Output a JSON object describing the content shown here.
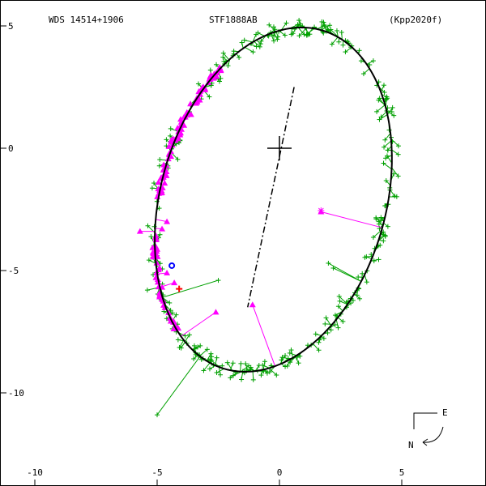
{
  "header": {
    "left": "WDS 14514+1906",
    "center": "STF1888AB",
    "right": "(Kpp2020f)"
  },
  "compass": {
    "east": "E",
    "north": "N"
  },
  "colors": {
    "frame": "#000000",
    "orbit": "#000000",
    "observations": "#00a000",
    "speckle": "#ff00ff",
    "blue_marks": "#0000ff",
    "red_marks": "#ff0000"
  },
  "chart_data": {
    "type": "scatter",
    "title": "STF1888AB",
    "xlim": [
      -11,
      8.5
    ],
    "ylim": [
      -13.5,
      5.5
    ],
    "x_ticks": [
      {
        "v": -10,
        "label": "-10"
      },
      {
        "v": -5,
        "label": "-5"
      },
      {
        "v": 0,
        "label": "0"
      },
      {
        "v": 5,
        "label": "5"
      }
    ],
    "y_ticks": [
      {
        "v": 5,
        "label": "5"
      },
      {
        "v": 0,
        "label": "0"
      },
      {
        "v": -5,
        "label": "-5"
      },
      {
        "v": -10,
        "label": "-10"
      }
    ],
    "y_tick_labels_shown_without_sign": [
      "5"
    ],
    "orbit": {
      "semi_major": 7.2,
      "semi_minor": 4.6,
      "center": [
        -0.25,
        -2.1
      ],
      "tilt_deg": 16
    },
    "primary": [
      0,
      0
    ],
    "line_of_nodes": [
      [
        0.6,
        2.5
      ],
      [
        -1.3,
        -6.5
      ]
    ],
    "outliers": [
      {
        "x": -5.0,
        "y": -10.9
      },
      {
        "x": -2.8,
        "y": -8.4
      },
      {
        "x": -5.4,
        "y": -5.8
      },
      {
        "x": -2.5,
        "y": -5.4
      },
      {
        "x": 2.0,
        "y": -4.7
      },
      {
        "x": 2.2,
        "y": -4.9
      }
    ],
    "speckle_cluster": [
      {
        "x": -5.7,
        "y": -3.4
      },
      {
        "x": -4.8,
        "y": -3.3
      },
      {
        "x": -4.6,
        "y": -3.0
      },
      {
        "x": -4.9,
        "y": -4.9
      },
      {
        "x": -4.6,
        "y": -5.1
      },
      {
        "x": -4.3,
        "y": -5.5
      },
      {
        "x": -2.6,
        "y": -6.7
      },
      {
        "x": -1.1,
        "y": -6.4
      },
      {
        "x": 1.7,
        "y": -2.6
      }
    ]
  }
}
